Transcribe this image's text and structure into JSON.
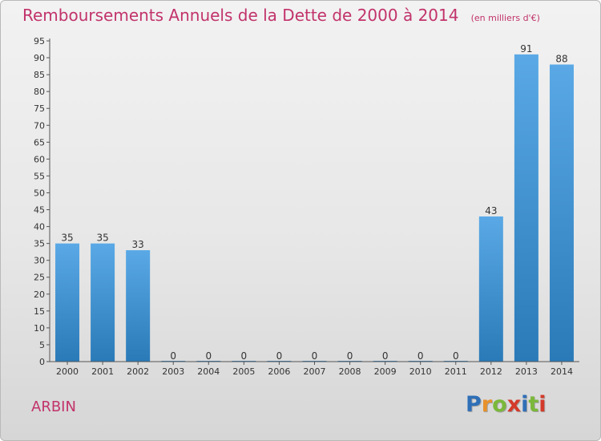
{
  "header": {
    "title": "Remboursements Annuels de la Dette de 2000 à 2014",
    "subtitle": "(en milliers d'€)"
  },
  "footer": {
    "commune": "ARBIN",
    "logo_text": "Proxiti",
    "logo_colors": [
      "#2f6fb7",
      "#e8912b",
      "#7bb83a",
      "#d43a2a",
      "#2f6fb7",
      "#7bb83a",
      "#d43a2a"
    ]
  },
  "chart_data": {
    "type": "bar",
    "categories": [
      "2000",
      "2001",
      "2002",
      "2003",
      "2004",
      "2005",
      "2006",
      "2007",
      "2008",
      "2009",
      "2010",
      "2011",
      "2012",
      "2013",
      "2014"
    ],
    "values": [
      35,
      35,
      33,
      0,
      0,
      0,
      0,
      0,
      0,
      0,
      0,
      0,
      43,
      91,
      88
    ],
    "title": "Remboursements Annuels de la Dette de 2000 à 2014",
    "subtitle": "(en milliers d'€)",
    "xlabel": "",
    "ylabel": "",
    "ylim": [
      0,
      95
    ],
    "yticks": [
      0,
      5,
      10,
      15,
      20,
      25,
      30,
      35,
      40,
      45,
      50,
      55,
      60,
      65,
      70,
      75,
      80,
      85,
      90,
      95
    ],
    "grid": false,
    "bar_color_top": "#5aa9e6",
    "bar_color_bottom": "#2a7ab8"
  }
}
